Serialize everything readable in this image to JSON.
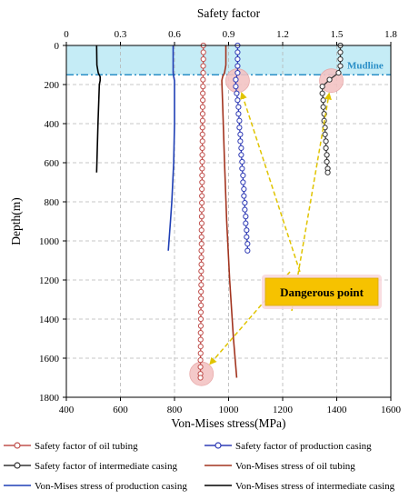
{
  "chart_data": {
    "type": "line",
    "top_axis": {
      "label": "Safety factor",
      "range": [
        0,
        1.8
      ],
      "ticks": [
        0,
        0.3,
        0.6,
        0.9,
        1.2,
        1.5,
        1.8
      ],
      "tick_labels": [
        "0",
        "0.3",
        "0.6",
        "0.9",
        "1.2",
        "1.5",
        "1.8"
      ]
    },
    "bottom_axis": {
      "label": "Von-Mises stress(MPa)",
      "range": [
        400,
        1600
      ],
      "ticks": [
        400,
        600,
        800,
        1000,
        1200,
        1400,
        1600
      ],
      "tick_labels": [
        "400",
        "600",
        "800",
        "1000",
        "1200",
        "1400",
        "1600"
      ]
    },
    "y_axis": {
      "label": "Depth(m)",
      "range": [
        0,
        1800
      ],
      "inverted": true,
      "ticks": [
        0,
        200,
        400,
        600,
        800,
        1000,
        1200,
        1400,
        1600,
        1800
      ],
      "tick_labels": [
        "0",
        "200",
        "400",
        "600",
        "800",
        "1000",
        "1200",
        "1400",
        "1600",
        "1800"
      ]
    },
    "grid": true,
    "seawater_band": {
      "depth_range": [
        0,
        150
      ],
      "color": "#c5ecf6"
    },
    "mudline": {
      "label": "Mudline",
      "depth": 150,
      "color": "#2b8fc7"
    },
    "annotation": {
      "text": "Dangerous point",
      "box_color": "#f6c200",
      "arrow_color": "#e0c400",
      "highlight_color": "#f3c4c4",
      "highlight_points": [
        {
          "series": "Safety factor of oil tubing",
          "x": 0.75,
          "y": 1680
        },
        {
          "series": "Safety factor of production casing",
          "x": 0.95,
          "y": 180
        },
        {
          "series": "Safety factor of intermediate casing",
          "x": 1.47,
          "y": 180
        }
      ]
    },
    "series": [
      {
        "name": "Safety factor of oil tubing",
        "axis": "top",
        "color": "#c0504d",
        "marker": "circle",
        "y": [
          0,
          35,
          70,
          105,
          140,
          175,
          210,
          245,
          280,
          315,
          350,
          385,
          420,
          455,
          490,
          525,
          560,
          595,
          630,
          665,
          700,
          735,
          770,
          805,
          840,
          875,
          910,
          945,
          980,
          1015,
          1050,
          1085,
          1120,
          1155,
          1190,
          1225,
          1260,
          1295,
          1330,
          1365,
          1400,
          1435,
          1470,
          1505,
          1540,
          1575,
          1610,
          1645,
          1680,
          1700
        ],
        "x": [
          0.76,
          0.76,
          0.76,
          0.759,
          0.759,
          0.758,
          0.758,
          0.757,
          0.757,
          0.756,
          0.756,
          0.756,
          0.755,
          0.755,
          0.755,
          0.754,
          0.754,
          0.754,
          0.753,
          0.753,
          0.753,
          0.752,
          0.752,
          0.752,
          0.751,
          0.751,
          0.751,
          0.75,
          0.75,
          0.75,
          0.749,
          0.749,
          0.749,
          0.748,
          0.748,
          0.748,
          0.747,
          0.747,
          0.747,
          0.746,
          0.746,
          0.746,
          0.745,
          0.745,
          0.745,
          0.745,
          0.744,
          0.744,
          0.744,
          0.744
        ]
      },
      {
        "name": "Safety factor of production casing",
        "axis": "top",
        "color": "#2f3bb5",
        "marker": "circle",
        "y": [
          0,
          35,
          70,
          105,
          140,
          175,
          210,
          245,
          280,
          315,
          350,
          385,
          420,
          455,
          490,
          525,
          560,
          595,
          630,
          665,
          700,
          735,
          770,
          805,
          840,
          875,
          910,
          945,
          980,
          1015,
          1050
        ],
        "x": [
          0.95,
          0.95,
          0.95,
          0.95,
          0.95,
          0.94,
          0.94,
          0.945,
          0.95,
          0.955,
          0.955,
          0.96,
          0.96,
          0.965,
          0.965,
          0.97,
          0.97,
          0.975,
          0.975,
          0.98,
          0.98,
          0.985,
          0.985,
          0.99,
          0.99,
          0.995,
          0.995,
          1.0,
          1.0,
          1.005,
          1.005
        ]
      },
      {
        "name": "Safety factor of intermediate casing",
        "axis": "top",
        "color": "#333333",
        "marker": "circle",
        "y": [
          0,
          35,
          70,
          105,
          140,
          175,
          210,
          245,
          280,
          315,
          350,
          385,
          420,
          455,
          490,
          525,
          560,
          595,
          630,
          650
        ],
        "x": [
          1.52,
          1.52,
          1.52,
          1.52,
          1.51,
          1.46,
          1.42,
          1.42,
          1.425,
          1.425,
          1.43,
          1.43,
          1.435,
          1.435,
          1.44,
          1.44,
          1.445,
          1.445,
          1.45,
          1.45
        ]
      },
      {
        "name": "Von-Mises stress of oil tubing",
        "axis": "bottom",
        "color": "#a2341f",
        "marker": "none",
        "y": [
          0,
          100,
          140,
          160,
          180,
          300,
          600,
          900,
          1200,
          1500,
          1700
        ],
        "x": [
          990,
          990,
          985,
          978,
          975,
          978,
          985,
          993,
          1004,
          1018,
          1030
        ]
      },
      {
        "name": "Von-Mises stress of production casing",
        "axis": "bottom",
        "color": "#1f3fb5",
        "marker": "none",
        "y": [
          0,
          100,
          140,
          160,
          180,
          200,
          400,
          600,
          800,
          900,
          1050
        ],
        "x": [
          795,
          795,
          795,
          797,
          800,
          800,
          800,
          797,
          790,
          785,
          777
        ]
      },
      {
        "name": "Von-Mises stress of intermediate casing",
        "axis": "bottom",
        "color": "#000000",
        "marker": "none",
        "y": [
          0,
          100,
          140,
          160,
          180,
          200,
          400,
          650
        ],
        "x": [
          512,
          513,
          518,
          525,
          525,
          522,
          517,
          512
        ]
      }
    ],
    "legend": {
      "placement": "bottom",
      "entries": [
        {
          "label": "Safety factor of oil tubing",
          "color": "#c0504d",
          "marker": "circle"
        },
        {
          "label": "Safety factor of production casing",
          "color": "#2f3bb5",
          "marker": "circle"
        },
        {
          "label": "Safety factor of intermediate casing",
          "color": "#333333",
          "marker": "circle"
        },
        {
          "label": "Von-Mises stress of oil tubing",
          "color": "#a2341f",
          "marker": "none"
        },
        {
          "label": "Von-Mises stress of production casing",
          "color": "#1f3fb5",
          "marker": "none"
        },
        {
          "label": "Von-Mises stress of intermediate casing",
          "color": "#000000",
          "marker": "none"
        }
      ]
    }
  }
}
